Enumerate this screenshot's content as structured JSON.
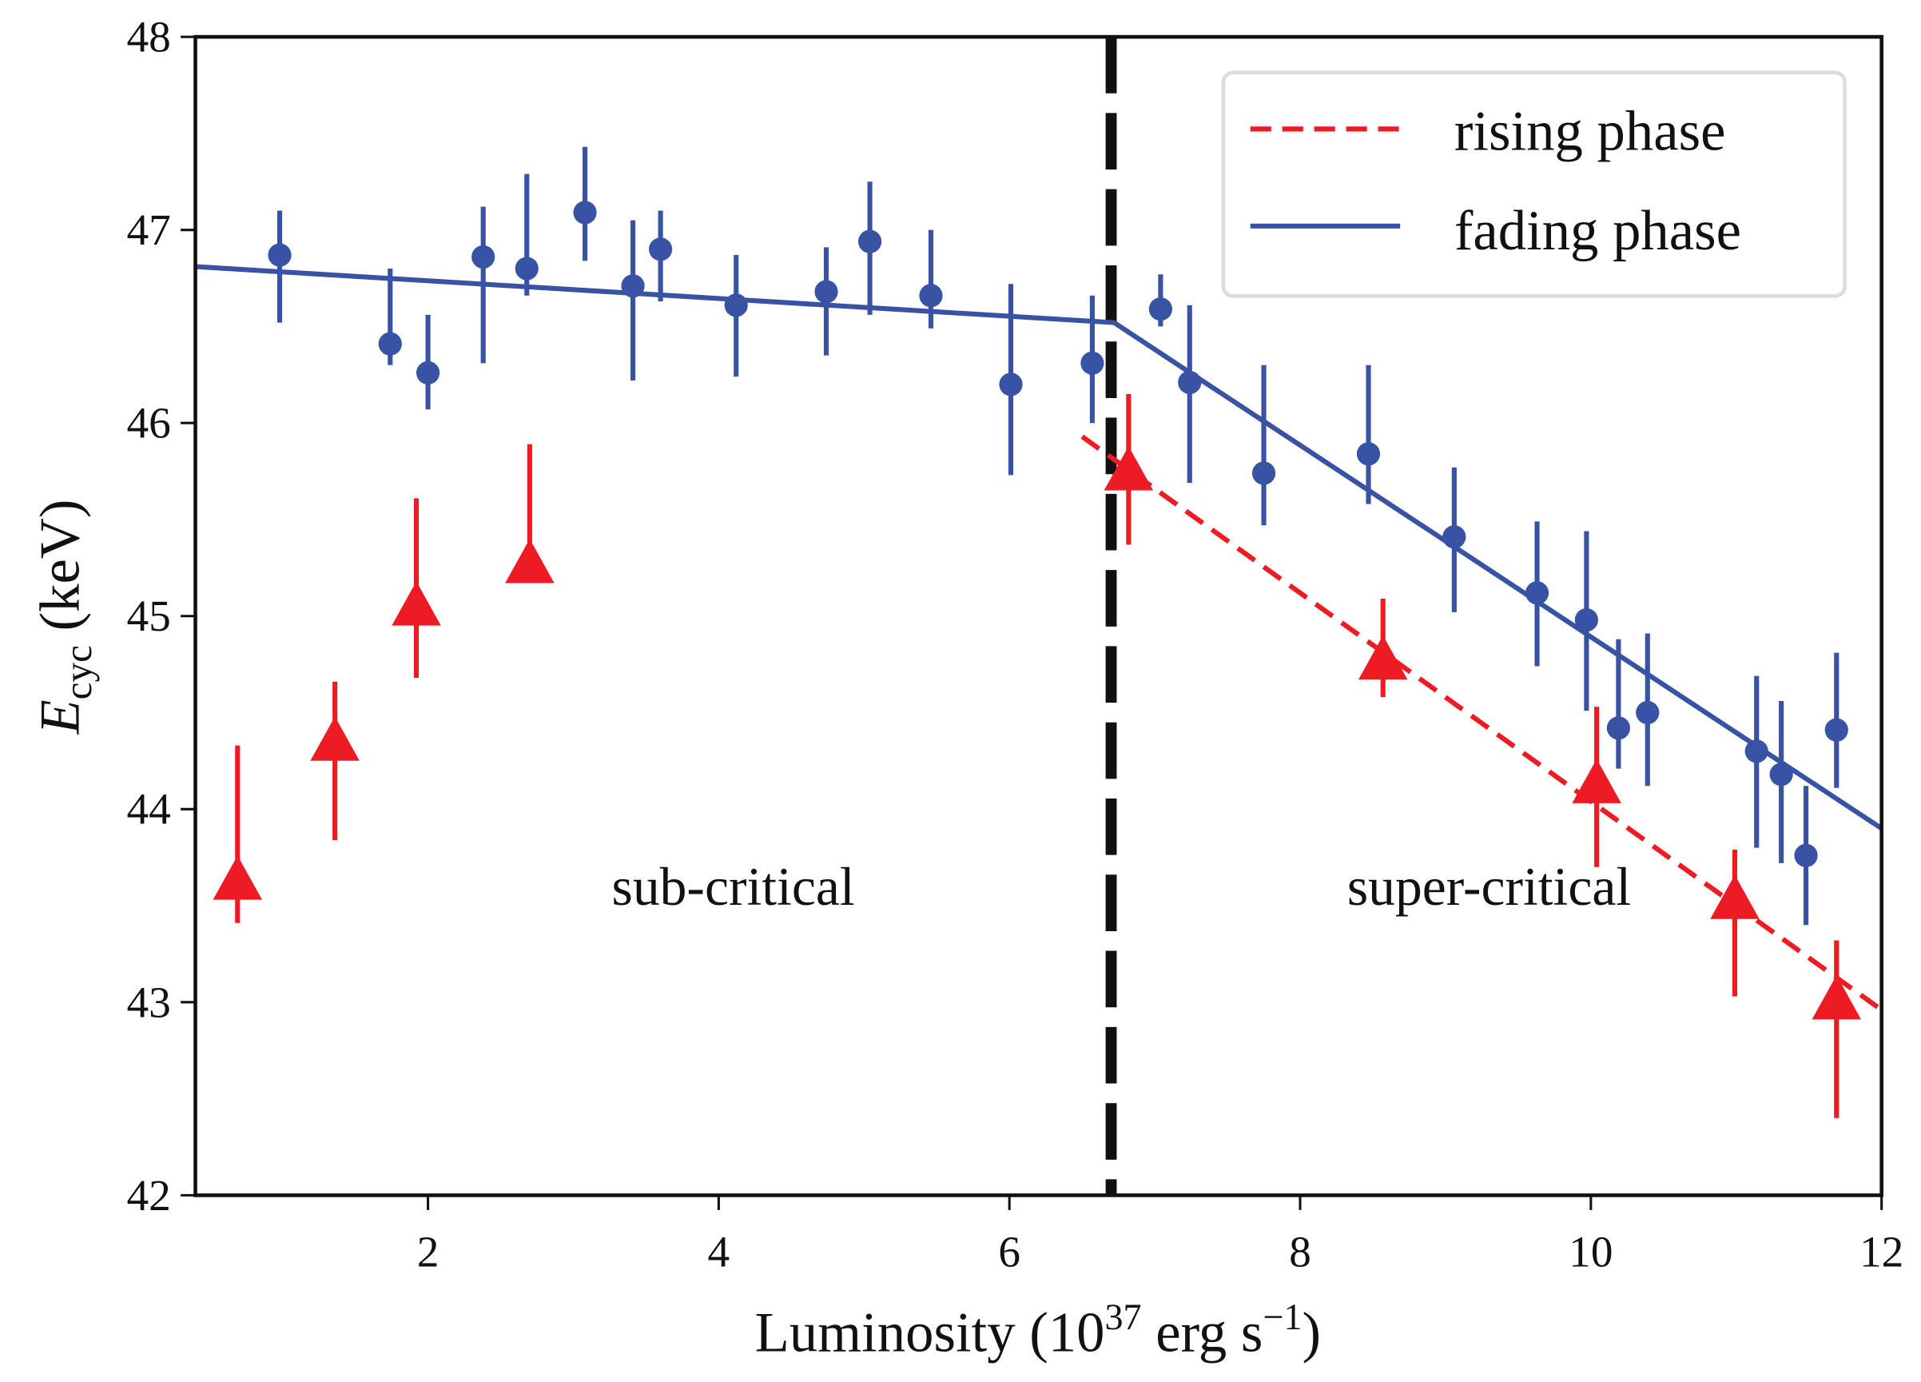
{
  "chart_data": {
    "type": "scatter",
    "xlabel": "Luminosity (10",
    "xlabel_sup": "37",
    "xlabel_mid": " erg s",
    "xlabel_sup2": "−1",
    "xlabel_end": ")",
    "ylabel_main": "E",
    "ylabel_sub": "cyc",
    "ylabel_end": " (keV)",
    "xlim": [
      0.4,
      12
    ],
    "ylim": [
      42,
      48
    ],
    "xticks": [
      "2",
      "4",
      "6",
      "8",
      "10",
      "12"
    ],
    "yticks": [
      "42",
      "43",
      "44",
      "45",
      "46",
      "47",
      "48"
    ],
    "critical_luminosity": 6.7,
    "annotations": [
      {
        "text": "sub-critical",
        "x": 4.1,
        "y": 43.6
      },
      {
        "text": "super-critical",
        "x": 9.3,
        "y": 43.6
      }
    ],
    "legend": {
      "placement": "top-right",
      "entries": [
        "rising phase",
        "fading phase"
      ]
    },
    "colors": {
      "rising": "#ed1c24",
      "fading": "#3953a4",
      "critical": "#111111"
    },
    "series": [
      {
        "name": "fading phase",
        "marker": "circle",
        "points": [
          {
            "x": 0.98,
            "y": 46.87,
            "lo": 46.52,
            "hi": 47.1
          },
          {
            "x": 1.74,
            "y": 46.41,
            "lo": 46.3,
            "hi": 46.8
          },
          {
            "x": 2.0,
            "y": 46.26,
            "lo": 46.07,
            "hi": 46.56
          },
          {
            "x": 2.38,
            "y": 46.86,
            "lo": 46.31,
            "hi": 47.12
          },
          {
            "x": 2.68,
            "y": 46.8,
            "lo": 46.66,
            "hi": 47.29
          },
          {
            "x": 3.08,
            "y": 47.09,
            "lo": 46.84,
            "hi": 47.43
          },
          {
            "x": 3.41,
            "y": 46.71,
            "lo": 46.22,
            "hi": 47.05
          },
          {
            "x": 3.6,
            "y": 46.9,
            "lo": 46.63,
            "hi": 47.1
          },
          {
            "x": 4.12,
            "y": 46.61,
            "lo": 46.24,
            "hi": 46.87
          },
          {
            "x": 4.74,
            "y": 46.68,
            "lo": 46.35,
            "hi": 46.91
          },
          {
            "x": 5.04,
            "y": 46.94,
            "lo": 46.56,
            "hi": 47.25
          },
          {
            "x": 5.46,
            "y": 46.66,
            "lo": 46.49,
            "hi": 47.0
          },
          {
            "x": 6.01,
            "y": 46.2,
            "lo": 45.73,
            "hi": 46.72
          },
          {
            "x": 6.57,
            "y": 46.31,
            "lo": 46.0,
            "hi": 46.66
          },
          {
            "x": 7.04,
            "y": 46.59,
            "lo": 46.5,
            "hi": 46.77
          },
          {
            "x": 7.24,
            "y": 46.21,
            "lo": 45.69,
            "hi": 46.61
          },
          {
            "x": 7.75,
            "y": 45.74,
            "lo": 45.47,
            "hi": 46.3
          },
          {
            "x": 8.47,
            "y": 45.84,
            "lo": 45.58,
            "hi": 46.3
          },
          {
            "x": 9.06,
            "y": 45.41,
            "lo": 45.02,
            "hi": 45.77
          },
          {
            "x": 9.63,
            "y": 45.12,
            "lo": 44.74,
            "hi": 45.49
          },
          {
            "x": 9.97,
            "y": 44.98,
            "lo": 44.51,
            "hi": 45.44
          },
          {
            "x": 10.19,
            "y": 44.42,
            "lo": 44.21,
            "hi": 44.88
          },
          {
            "x": 10.39,
            "y": 44.5,
            "lo": 44.12,
            "hi": 44.91
          },
          {
            "x": 11.14,
            "y": 44.3,
            "lo": 43.8,
            "hi": 44.69
          },
          {
            "x": 11.31,
            "y": 44.18,
            "lo": 43.72,
            "hi": 44.56
          },
          {
            "x": 11.48,
            "y": 43.76,
            "lo": 43.4,
            "hi": 44.12
          },
          {
            "x": 11.69,
            "y": 44.41,
            "lo": 44.11,
            "hi": 44.81
          }
        ],
        "fit": [
          [
            0.4,
            46.81
          ],
          [
            6.72,
            46.52
          ],
          [
            12,
            43.9
          ]
        ]
      },
      {
        "name": "rising phase",
        "marker": "triangle",
        "points": [
          {
            "x": 0.69,
            "y": 43.62,
            "lo": 43.41,
            "hi": 44.33
          },
          {
            "x": 1.36,
            "y": 44.34,
            "lo": 43.84,
            "hi": 44.66
          },
          {
            "x": 1.92,
            "y": 45.04,
            "lo": 44.68,
            "hi": 45.61
          },
          {
            "x": 2.7,
            "y": 45.26,
            "lo": 45.2,
            "hi": 45.89
          },
          {
            "x": 6.82,
            "y": 45.74,
            "lo": 45.37,
            "hi": 46.15
          },
          {
            "x": 8.57,
            "y": 44.76,
            "lo": 44.58,
            "hi": 45.09
          },
          {
            "x": 10.04,
            "y": 44.12,
            "lo": 43.7,
            "hi": 44.53
          },
          {
            "x": 10.99,
            "y": 43.52,
            "lo": 43.03,
            "hi": 43.79
          },
          {
            "x": 11.69,
            "y": 43.0,
            "lo": 42.4,
            "hi": 43.32
          }
        ],
        "fit": [
          [
            6.5,
            45.93
          ],
          [
            12,
            42.96
          ]
        ]
      }
    ]
  }
}
